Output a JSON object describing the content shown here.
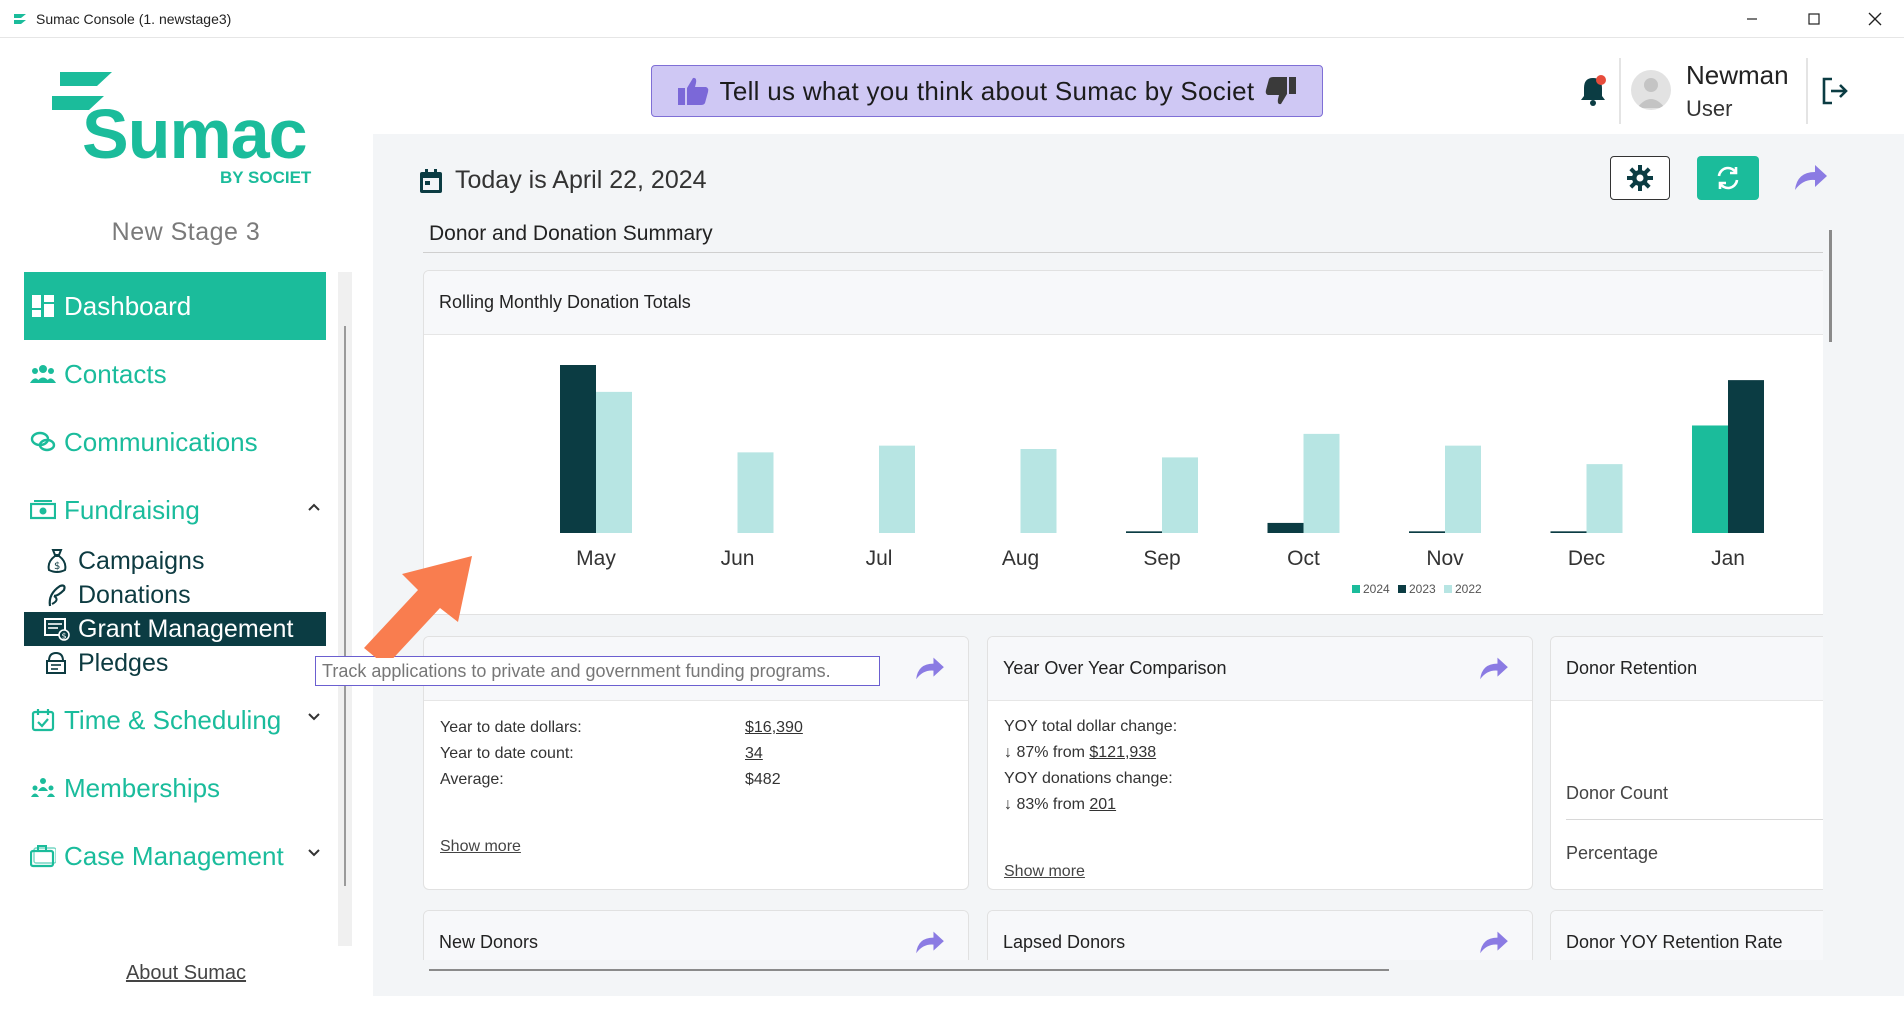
{
  "window": {
    "title": "Sumac Console (1. newstage3)",
    "controls": [
      "minimize",
      "maximize",
      "close"
    ]
  },
  "sidebar": {
    "logo": {
      "brand": "Sumac",
      "tagline": "BY SOCIET"
    },
    "stage_name": "New Stage 3",
    "items": [
      {
        "label": "Dashboard",
        "icon": "dashboard-icon",
        "active": true
      },
      {
        "label": "Contacts",
        "icon": "contacts-icon"
      },
      {
        "label": "Communications",
        "icon": "communications-icon"
      },
      {
        "label": "Fundraising",
        "icon": "fundraising-icon",
        "expanded": true
      },
      {
        "label": "Time & Scheduling",
        "icon": "calendar-check-icon",
        "expanded": false
      },
      {
        "label": "Memberships",
        "icon": "memberships-icon"
      },
      {
        "label": "Case Management",
        "icon": "briefcase-icon",
        "expanded": false
      }
    ],
    "fundraising_sub": [
      {
        "label": "Campaigns",
        "icon": "money-bag-icon"
      },
      {
        "label": "Donations",
        "icon": "donation-icon"
      },
      {
        "label": "Grant Management",
        "icon": "grant-icon",
        "selected": true
      },
      {
        "label": "Pledges",
        "icon": "pledge-icon"
      }
    ],
    "about_link": "About Sumac"
  },
  "tooltip": {
    "text": "Track applications to private and government funding programs."
  },
  "header": {
    "feedback_text": "Tell us what you think about Sumac by Societ",
    "user": {
      "name": "Newman",
      "role": "User"
    },
    "notification_dot": true
  },
  "dashboard": {
    "today_text": "Today is April 22, 2024",
    "section_title": "Donor and Donation Summary"
  },
  "chart_card": {
    "title": "Rolling Monthly Donation Totals"
  },
  "chart_data": {
    "type": "bar",
    "title": "Rolling Monthly Donation Totals",
    "categories": [
      "May",
      "Jun",
      "Jul",
      "Aug",
      "Sep",
      "Oct",
      "Nov",
      "Dec",
      "Jan"
    ],
    "series": [
      {
        "name": "2024",
        "color": "#1bbc9b",
        "values": [
          0,
          0,
          0,
          0,
          0,
          0,
          0,
          0,
          64
        ]
      },
      {
        "name": "2023",
        "color": "#0b3c43",
        "values": [
          100,
          0,
          0,
          0,
          1,
          6,
          1,
          1,
          91
        ]
      },
      {
        "name": "2022",
        "color": "#b7e5e3",
        "values": [
          84,
          48,
          52,
          50,
          45,
          59,
          52,
          41,
          0
        ]
      }
    ],
    "ylim": [
      0,
      100
    ],
    "legend_position": "bottom-center",
    "grid": false
  },
  "cards": {
    "donations": {
      "rows": [
        {
          "label": "Year to date dollars:",
          "value": "$16,390",
          "link": true
        },
        {
          "label": "Year to date count:",
          "value": "34",
          "link": true
        },
        {
          "label": "Average:",
          "value": "$482",
          "link": false
        }
      ],
      "show_more": "Show more"
    },
    "yoy": {
      "title": "Year Over Year Comparison",
      "line1_label": "YOY total dollar change:",
      "line2_prefix": "↓ 87% from",
      "line2_link": "$121,938",
      "line3_label": "YOY donations change:",
      "line4_prefix": "↓ 83% from",
      "line4_link": "201",
      "show_more": "Show more"
    },
    "retention": {
      "title": "Donor Retention",
      "labels": [
        "Donor Count",
        "Percentage"
      ]
    },
    "new_donors": {
      "title": "New Donors"
    },
    "lapsed_donors": {
      "title": "Lapsed Donors"
    },
    "yoy_retention": {
      "title": "Donor YOY Retention Rate"
    }
  }
}
